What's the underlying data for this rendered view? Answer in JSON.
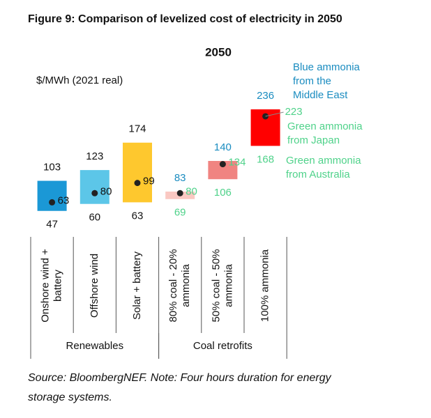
{
  "chart_data": {
    "type": "range_bar",
    "title": "Figure 9: Comparison of levelized cost of electricity in 2050",
    "subtitle": "2050",
    "y_label": "$/MWh (2021 real)",
    "source": [
      "Source: BloombergNEF. Note: Four hours duration for energy",
      "storage systems."
    ],
    "categories": [
      [
        "Onshore wind +",
        "battery"
      ],
      [
        "Offshore wind"
      ],
      [
        "Solar + battery"
      ],
      [
        "80% coal - 20%",
        "ammonia"
      ],
      [
        "50% coal - 50%",
        "ammonia"
      ],
      [
        "100% ammonia"
      ]
    ],
    "groups": [
      {
        "label": "Renewables",
        "span": 3
      },
      {
        "label": "Coal retrofits",
        "span": 3
      }
    ],
    "low": [
      47,
      60,
      63,
      69,
      106,
      168
    ],
    "high": [
      103,
      123,
      174,
      83,
      140,
      236
    ],
    "mid": [
      63,
      80,
      99,
      80,
      134,
      223
    ],
    "colors": [
      "#1b98d6",
      "#5cc6e8",
      "#fec82e",
      "#fac8c2",
      "#f08481",
      "#ff0000"
    ],
    "high_label_colors": [
      "#111111",
      "#111111",
      "#111111",
      "#1a8cc0",
      "#1a8cc0",
      "#1a8cc0"
    ],
    "low_label_colors": [
      "#111111",
      "#111111",
      "#111111",
      "#4fd28a",
      "#4fd28a",
      "#4fd28a"
    ],
    "mid_label_colors": [
      "#111111",
      "#111111",
      "#111111",
      "#4fd28a",
      "#4fd28a",
      "#4fd28a"
    ],
    "annotations": [
      {
        "lines": [
          "Blue ammonia",
          "from the",
          "Middle East"
        ],
        "color": "#1a8cc0"
      },
      {
        "lines": [
          "Green ammonia",
          "from Japan"
        ],
        "color": "#4fd28a"
      },
      {
        "lines": [
          "Green ammonia",
          "from Australia"
        ],
        "color": "#4fd28a"
      }
    ],
    "ylim": [
      0,
      280
    ]
  }
}
